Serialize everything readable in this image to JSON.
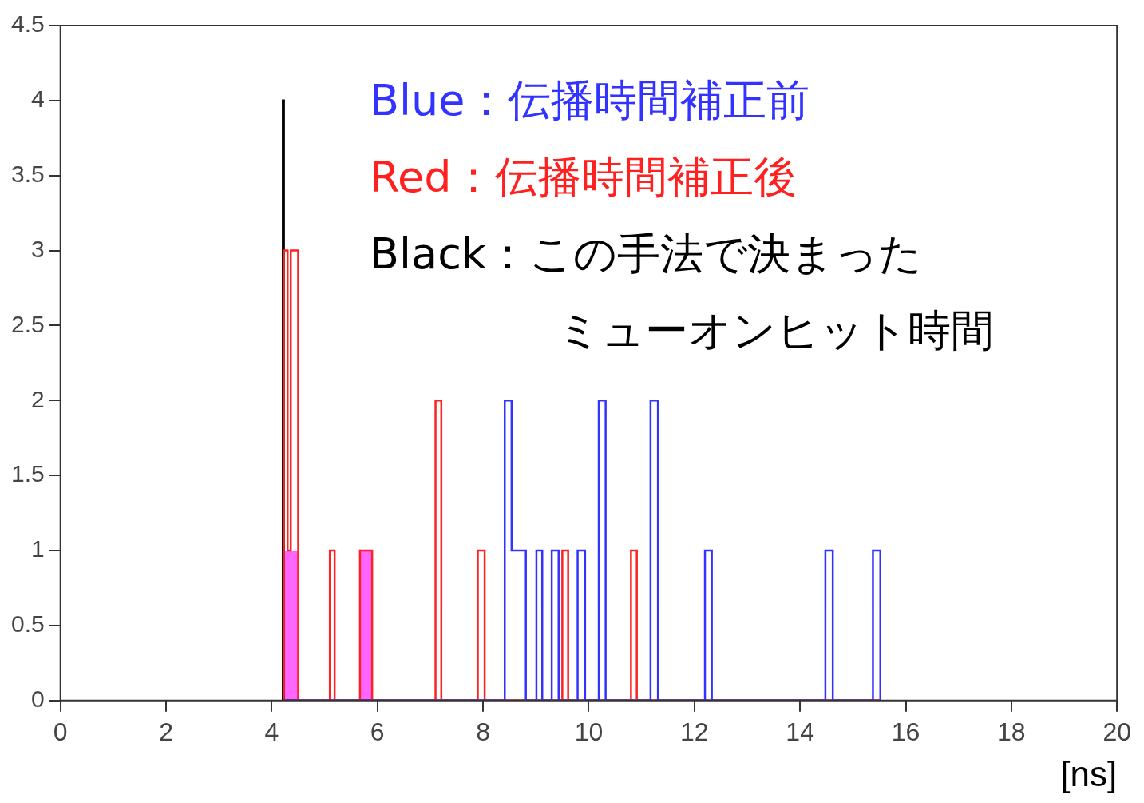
{
  "chart_data": {
    "type": "histogram",
    "xlabel": "[ns]",
    "xlim": [
      0,
      20
    ],
    "ylim": [
      0,
      4.5
    ],
    "xticks": [
      0,
      2,
      4,
      6,
      8,
      10,
      12,
      14,
      16,
      18,
      20
    ],
    "yticks": [
      0,
      0.5,
      1,
      1.5,
      2,
      2.5,
      3,
      3.5,
      4,
      4.5
    ],
    "grid": false,
    "legend": false,
    "bins": [
      4.21,
      4.23,
      4.3,
      4.36,
      4.5,
      5.1,
      5.19,
      5.67,
      5.9,
      7.1,
      7.21,
      7.9,
      8.03,
      8.41,
      8.54,
      8.81,
      9.01,
      9.12,
      9.3,
      9.43,
      9.5,
      9.61,
      9.79,
      9.93,
      10.19,
      10.32,
      10.8,
      10.91,
      11.17,
      11.31,
      12.2,
      12.33,
      14.48,
      14.62,
      15.38,
      15.52
    ],
    "series": [
      {
        "color": "#3333ff",
        "values": [
          0,
          0,
          0,
          0,
          0,
          0,
          0,
          0,
          0,
          0,
          0,
          0,
          0,
          2,
          1,
          0,
          1,
          0,
          1,
          0,
          0,
          0,
          1,
          0,
          2,
          0,
          0,
          0,
          2,
          0,
          1,
          0,
          1,
          0,
          1
        ]
      },
      {
        "color": "#ff2020",
        "values": [
          0,
          3,
          1,
          3,
          0,
          1,
          0,
          1,
          0,
          2,
          0,
          1,
          0,
          0,
          0,
          0,
          0,
          0,
          0,
          0,
          1,
          0,
          0,
          0,
          0,
          0,
          1,
          0,
          0,
          0,
          0,
          0,
          0,
          0,
          0
        ]
      },
      {
        "color": "#000000",
        "values": [
          4,
          0,
          0,
          0,
          0,
          0,
          0,
          0,
          0,
          0,
          0,
          0,
          0,
          0,
          0,
          0,
          0,
          0,
          0,
          0,
          0,
          0,
          0,
          0,
          0,
          0,
          0,
          0,
          0,
          0,
          0,
          0,
          0,
          0,
          0
        ]
      },
      {
        "color": "#ff66ff",
        "values": [
          0,
          1,
          1,
          1,
          0,
          0,
          0,
          1,
          0,
          0,
          0,
          0,
          0,
          0,
          0,
          0,
          0,
          0,
          0,
          0,
          0,
          0,
          0,
          0,
          0,
          0,
          0,
          0,
          0,
          0,
          0,
          0,
          0,
          0,
          0
        ]
      }
    ],
    "annotations": [
      "Blue：伝播時間補正前",
      "Red：伝播時間補正後",
      "Black：この手法で決まった",
      "ミューオンヒット時間"
    ]
  }
}
